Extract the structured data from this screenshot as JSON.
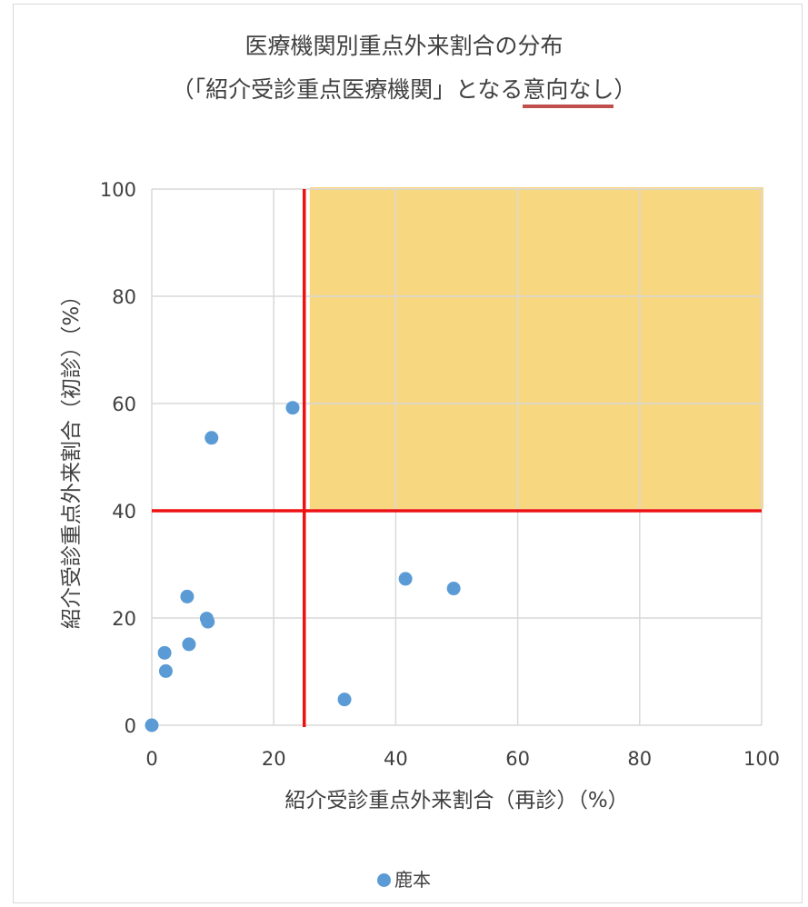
{
  "chart_data": {
    "type": "scatter",
    "title": "医療機関別重点外来割合の分布",
    "subtitle": {
      "prefix": "（「紹介受診重点医療機関」となる",
      "underlined": "意向なし",
      "suffix": "）"
    },
    "xlabel": "紹介受診重点外来割合（再診）（%）",
    "ylabel": "紹介受診重点外来割合（初診）（%）",
    "xlim": [
      0,
      100
    ],
    "ylim": [
      0,
      100
    ],
    "xticks": [
      "0",
      "20",
      "40",
      "60",
      "80",
      "100"
    ],
    "yticks": [
      "0",
      "20",
      "40",
      "60",
      "80",
      "100"
    ],
    "grid": true,
    "legend_position": "bottom",
    "threshold_x": 25,
    "threshold_y": 40,
    "highlight_region": {
      "x": [
        25,
        100
      ],
      "y": [
        40,
        100
      ]
    },
    "series": [
      {
        "name": "鹿本",
        "color": "#5b9bd5",
        "points": [
          {
            "x": 0,
            "y": 0
          },
          {
            "x": 2.1,
            "y": 13.5
          },
          {
            "x": 2.3,
            "y": 10.1
          },
          {
            "x": 5.8,
            "y": 24.0
          },
          {
            "x": 6.1,
            "y": 15.1
          },
          {
            "x": 9.0,
            "y": 19.9
          },
          {
            "x": 9.2,
            "y": 19.3
          },
          {
            "x": 9.8,
            "y": 53.6
          },
          {
            "x": 23.1,
            "y": 59.2
          },
          {
            "x": 31.6,
            "y": 4.8
          },
          {
            "x": 41.6,
            "y": 27.3
          },
          {
            "x": 49.5,
            "y": 25.5
          }
        ]
      }
    ]
  },
  "colors": {
    "threshold_line": "#ee1111",
    "highlight_fill": "#f7d06b",
    "grid": "#d9d9d9",
    "text": "#404040",
    "title_underline": "#c0504d"
  }
}
